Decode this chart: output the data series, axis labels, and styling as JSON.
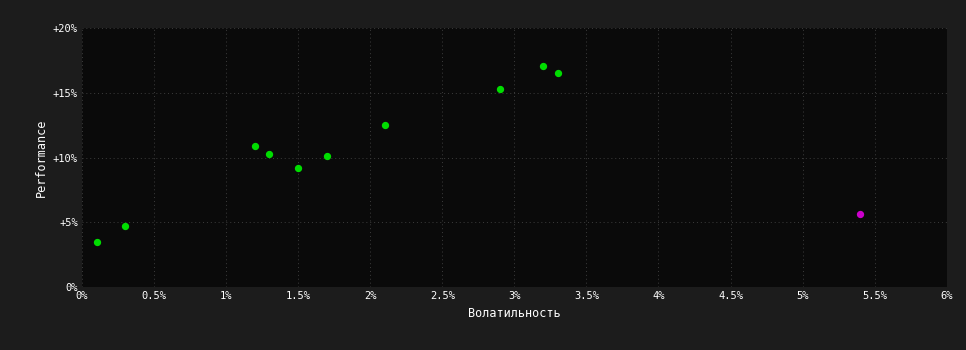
{
  "xlabel": "Волатильность",
  "ylabel": "Performance",
  "background_color": "#1c1c1c",
  "plot_background_color": "#0a0a0a",
  "grid_color": "#3d3d3d",
  "text_color": "#ffffff",
  "xlim": [
    0,
    0.06
  ],
  "ylim": [
    0,
    0.2
  ],
  "xticks": [
    0,
    0.005,
    0.01,
    0.015,
    0.02,
    0.025,
    0.03,
    0.035,
    0.04,
    0.045,
    0.05,
    0.055,
    0.06
  ],
  "yticks": [
    0,
    0.05,
    0.1,
    0.15,
    0.2
  ],
  "xtick_labels": [
    "0%",
    "0.5%",
    "1%",
    "1.5%",
    "2%",
    "2.5%",
    "3%",
    "3.5%",
    "4%",
    "4.5%",
    "5%",
    "5.5%",
    "6%"
  ],
  "ytick_labels": [
    "0%",
    "+5%",
    "+10%",
    "+15%",
    "+20%"
  ],
  "green_points": [
    [
      0.001,
      0.035
    ],
    [
      0.003,
      0.047
    ],
    [
      0.012,
      0.109
    ],
    [
      0.013,
      0.103
    ],
    [
      0.015,
      0.092
    ],
    [
      0.017,
      0.101
    ],
    [
      0.021,
      0.125
    ],
    [
      0.029,
      0.153
    ],
    [
      0.032,
      0.171
    ],
    [
      0.033,
      0.165
    ]
  ],
  "magenta_points": [
    [
      0.054,
      0.056
    ]
  ],
  "green_color": "#00dd00",
  "magenta_color": "#cc00cc",
  "marker_size": 18
}
